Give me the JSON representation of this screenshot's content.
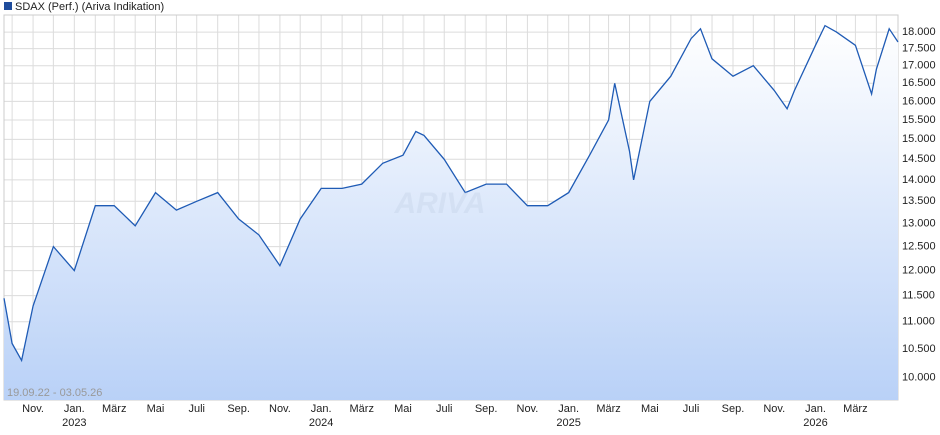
{
  "chart_data": {
    "type": "area",
    "legend": "SDAX (Perf.) (Ariva Indikation)",
    "range_label": "19.09.22 - 03.05.26",
    "watermark": "ARIVA",
    "log_scale": true,
    "grid": true,
    "series": [
      {
        "name": "SDAX (Perf.) (Ariva Indikation)",
        "color": "#1f5bb5",
        "x": [
          "2022-09-19",
          "2022-10-01",
          "2022-10-15",
          "2022-11-01",
          "2022-12-01",
          "2023-01-01",
          "2023-02-01",
          "2023-03-01",
          "2023-04-01",
          "2023-05-01",
          "2023-06-01",
          "2023-07-01",
          "2023-08-01",
          "2023-09-01",
          "2023-10-01",
          "2023-11-01",
          "2023-12-01",
          "2024-01-01",
          "2024-02-01",
          "2024-03-01",
          "2024-04-01",
          "2024-05-01",
          "2024-05-20",
          "2024-06-01",
          "2024-07-01",
          "2024-08-01",
          "2024-09-01",
          "2024-10-01",
          "2024-11-01",
          "2024-12-01",
          "2025-01-01",
          "2025-02-01",
          "2025-03-01",
          "2025-03-10",
          "2025-04-01",
          "2025-04-07",
          "2025-05-01",
          "2025-06-01",
          "2025-07-01",
          "2025-07-15",
          "2025-08-01",
          "2025-09-01",
          "2025-10-01",
          "2025-11-01",
          "2025-11-20",
          "2025-12-01",
          "2026-01-01",
          "2026-01-15",
          "2026-02-01",
          "2026-03-01",
          "2026-03-25",
          "2026-04-01",
          "2026-04-20",
          "2026-05-03"
        ],
        "values": [
          11450,
          10600,
          10300,
          11300,
          12500,
          12000,
          13400,
          13400,
          12950,
          13700,
          13300,
          13500,
          13700,
          13100,
          12750,
          12100,
          13100,
          13800,
          13800,
          13900,
          14400,
          14600,
          15200,
          15100,
          14500,
          13700,
          13900,
          13900,
          13400,
          13400,
          13700,
          14600,
          15500,
          16500,
          14700,
          14000,
          16000,
          16700,
          17800,
          18100,
          17200,
          16700,
          17000,
          16300,
          15800,
          16300,
          17600,
          18200,
          18000,
          17600,
          16200,
          16900,
          18100,
          17700
        ]
      }
    ],
    "xlim": [
      "2022-09-19",
      "2026-05-03"
    ],
    "xticks": [
      {
        "value": "2022-11-01",
        "label": "Nov."
      },
      {
        "value": "2023-01-01",
        "label": "Jan."
      },
      {
        "value": "2023-03-01",
        "label": "März"
      },
      {
        "value": "2023-05-01",
        "label": "Mai"
      },
      {
        "value": "2023-07-01",
        "label": "Juli"
      },
      {
        "value": "2023-09-01",
        "label": "Sep."
      },
      {
        "value": "2023-11-01",
        "label": "Nov."
      },
      {
        "value": "2024-01-01",
        "label": "Jan."
      },
      {
        "value": "2024-03-01",
        "label": "März"
      },
      {
        "value": "2024-05-01",
        "label": "Mai"
      },
      {
        "value": "2024-07-01",
        "label": "Juli"
      },
      {
        "value": "2024-09-01",
        "label": "Sep."
      },
      {
        "value": "2024-11-01",
        "label": "Nov."
      },
      {
        "value": "2025-01-01",
        "label": "Jan."
      },
      {
        "value": "2025-03-01",
        "label": "März"
      },
      {
        "value": "2025-05-01",
        "label": "Mai"
      },
      {
        "value": "2025-07-01",
        "label": "Juli"
      },
      {
        "value": "2025-09-01",
        "label": "Sep."
      },
      {
        "value": "2025-11-01",
        "label": "Nov."
      },
      {
        "value": "2026-01-01",
        "label": "Jan."
      },
      {
        "value": "2026-03-01",
        "label": "März"
      }
    ],
    "year_labels": [
      {
        "value": "2023-01-01",
        "label": "2023"
      },
      {
        "value": "2024-01-01",
        "label": "2024"
      },
      {
        "value": "2025-01-01",
        "label": "2025"
      },
      {
        "value": "2026-01-01",
        "label": "2026"
      }
    ],
    "minor_xticks": [
      "2022-10-01",
      "2022-12-01",
      "2023-02-01",
      "2023-04-01",
      "2023-06-01",
      "2023-08-01",
      "2023-10-01",
      "2023-12-01",
      "2024-02-01",
      "2024-04-01",
      "2024-06-01",
      "2024-08-01",
      "2024-10-01",
      "2024-12-01",
      "2025-02-01",
      "2025-04-01",
      "2025-06-01",
      "2025-08-01",
      "2025-10-01",
      "2025-12-01",
      "2026-02-01",
      "2026-04-01"
    ],
    "ylim": [
      9630,
      18530
    ],
    "yticks": [
      {
        "value": 10000,
        "label": "10.000"
      },
      {
        "value": 10500,
        "label": "10.500"
      },
      {
        "value": 11000,
        "label": "11.000"
      },
      {
        "value": 11500,
        "label": "11.500"
      },
      {
        "value": 12000,
        "label": "12.000"
      },
      {
        "value": 12500,
        "label": "12.500"
      },
      {
        "value": 13000,
        "label": "13.000"
      },
      {
        "value": 13500,
        "label": "13.500"
      },
      {
        "value": 14000,
        "label": "14.000"
      },
      {
        "value": 14500,
        "label": "14.500"
      },
      {
        "value": 15000,
        "label": "15.000"
      },
      {
        "value": 15500,
        "label": "15.500"
      },
      {
        "value": 16000,
        "label": "16.000"
      },
      {
        "value": 16500,
        "label": "16.500"
      },
      {
        "value": 17000,
        "label": "17.000"
      },
      {
        "value": 17500,
        "label": "17.500"
      },
      {
        "value": 18000,
        "label": "18.000"
      }
    ]
  }
}
